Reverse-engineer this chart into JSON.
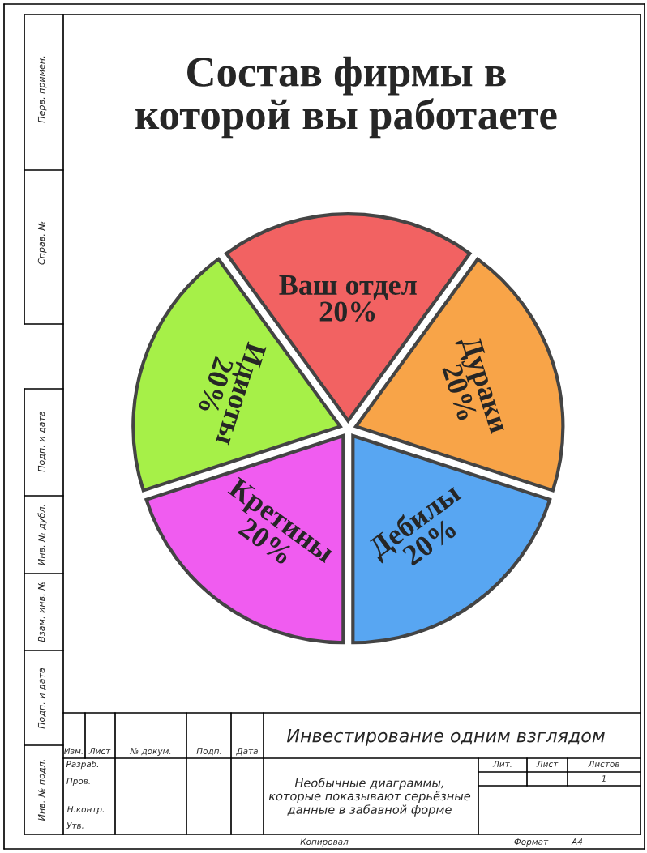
{
  "chart_data": {
    "type": "pie",
    "title": "Состав фирмы в\nкоторой вы работаете",
    "categories": [
      "Ваш отдел",
      "Дураки",
      "Дебилы",
      "Кретины",
      "Идиоты"
    ],
    "values": [
      20,
      20,
      20,
      20,
      20
    ],
    "value_labels": [
      "20%",
      "20%",
      "20%",
      "20%",
      "20%"
    ],
    "colors": [
      "#f26262",
      "#f8a448",
      "#58a6f2",
      "#f05cf0",
      "#a6f048"
    ],
    "annotations": [
      "Перв. примен.",
      "Справ. №",
      "Подп. и дата",
      "Инв. № дубл.",
      "Взам. инв. №",
      "Подп. и дата",
      "Инв. № подл.",
      "Изм.",
      "Лист",
      "№ докум.",
      "Подп.",
      "Дата",
      "Разраб.",
      "Пров.",
      "Н.контр.",
      "Утв.",
      "Инвестирование одним взглядом",
      "Необычные диаграммы,\nкоторые показывают серьёзные\nданные в забавной форме",
      "Лит.",
      "Лист",
      "Листов",
      "1",
      "Копировал",
      "Формат",
      "А4"
    ]
  }
}
